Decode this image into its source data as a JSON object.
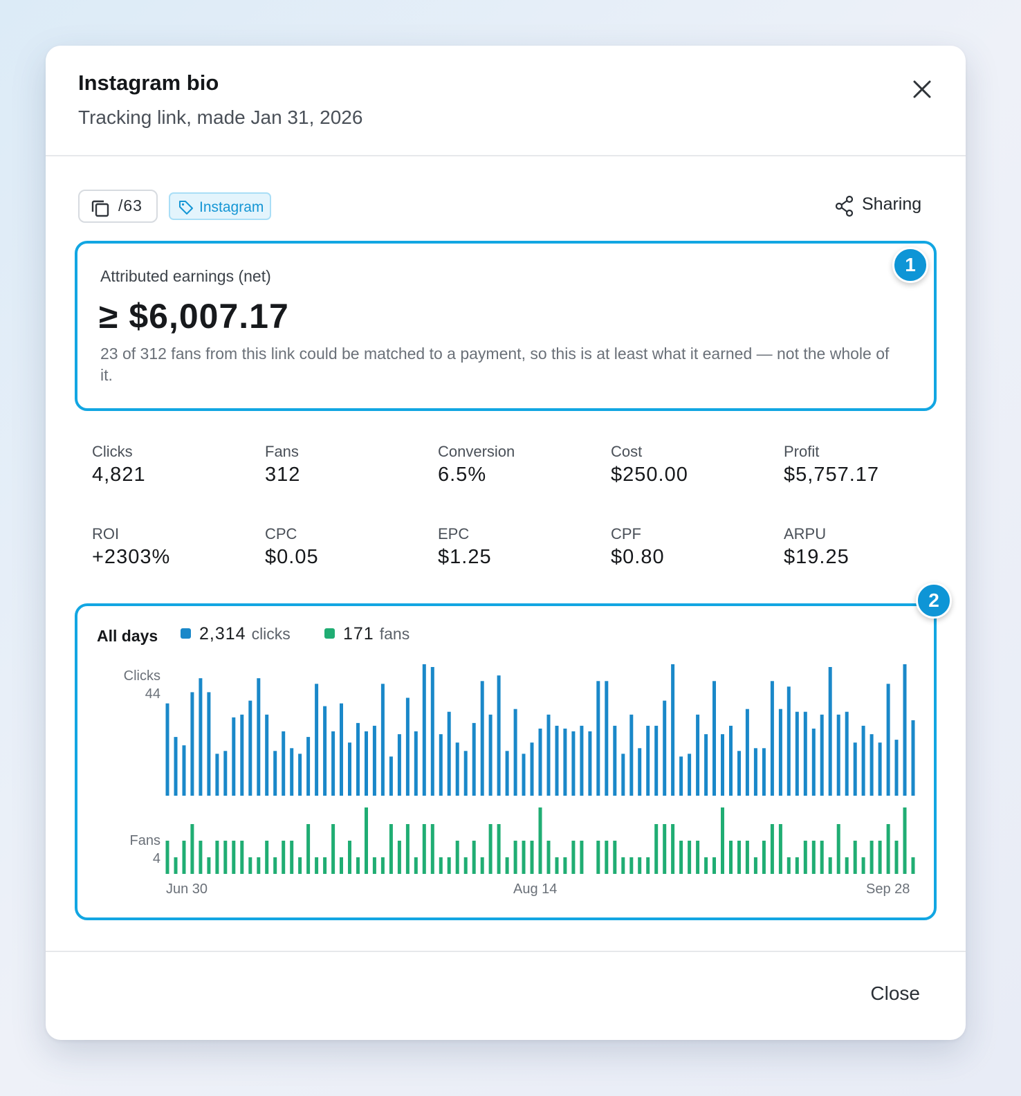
{
  "modal": {
    "title": "Instagram bio",
    "subtitle": "Tracking link, made Jan 31, 2026",
    "close_icon": "close-icon"
  },
  "toolbar": {
    "copy_text": "/63",
    "copy_icon": "copy-icon",
    "tag_label": "Instagram",
    "tag_icon": "tag-icon",
    "sharing_label": "Sharing",
    "sharing_icon": "share-icon"
  },
  "earnings": {
    "badge": "1",
    "label": "Attributed earnings (net)",
    "value": "≥ $6,007.17",
    "note": "23 of 312 fans from this link could be matched to a payment, so this is at least what it earned — not the whole of it."
  },
  "stats": [
    {
      "label": "Clicks",
      "value": "4,821"
    },
    {
      "label": "Fans",
      "value": "312"
    },
    {
      "label": "Conversion",
      "value": "6.5%"
    },
    {
      "label": "Cost",
      "value": "$250.00"
    },
    {
      "label": "Profit",
      "value": "$5,757.17"
    },
    {
      "label": "ROI",
      "value": "+2303%"
    },
    {
      "label": "CPC",
      "value": "$0.05"
    },
    {
      "label": "EPC",
      "value": "$1.25"
    },
    {
      "label": "CPF",
      "value": "$0.80"
    },
    {
      "label": "ARPU",
      "value": "$19.25"
    }
  ],
  "chart": {
    "badge": "2",
    "range_label": "All days",
    "legend_clicks_value": "2,314",
    "legend_clicks_unit": "clicks",
    "legend_fans_value": "171",
    "legend_fans_unit": "fans",
    "clicks_axis_label": "Clicks",
    "clicks_axis_max": "44",
    "fans_axis_label": "Fans",
    "fans_axis_max": "4",
    "date_start": "Jun 30",
    "date_mid": "Aug 14",
    "date_end": "Sep 28"
  },
  "chart_data": {
    "type": "bar",
    "x_start": "Jun 30",
    "x_mid": "Aug 14",
    "x_end": "Sep 28",
    "colors": {
      "clicks": "#1a88c9",
      "fans": "#20ad73"
    },
    "series": [
      {
        "name": "clicks",
        "max_label": 44,
        "values": [
          33,
          21,
          18,
          37,
          42,
          37,
          15,
          16,
          28,
          29,
          34,
          42,
          29,
          16,
          23,
          17,
          15,
          21,
          40,
          32,
          23,
          33,
          19,
          26,
          23,
          25,
          40,
          14,
          22,
          35,
          23,
          47,
          46,
          22,
          30,
          19,
          16,
          26,
          41,
          29,
          43,
          16,
          31,
          15,
          19,
          24,
          29,
          25,
          24,
          23,
          25,
          23,
          41,
          41,
          25,
          15,
          29,
          17,
          25,
          25,
          34,
          47,
          14,
          15,
          29,
          22,
          41,
          22,
          25,
          16,
          31,
          17,
          17,
          41,
          31,
          39,
          30,
          30,
          24,
          29,
          46,
          29,
          30,
          19,
          25,
          22,
          19,
          40,
          20,
          47,
          27
        ]
      },
      {
        "name": "fans",
        "max_label": 4,
        "values": [
          2,
          1,
          2,
          3,
          2,
          1,
          2,
          2,
          2,
          2,
          1,
          1,
          2,
          1,
          2,
          2,
          1,
          3,
          1,
          1,
          3,
          1,
          2,
          1,
          4,
          1,
          1,
          3,
          2,
          3,
          1,
          3,
          3,
          1,
          1,
          2,
          1,
          2,
          1,
          3,
          3,
          1,
          2,
          2,
          2,
          4,
          2,
          1,
          1,
          2,
          2,
          0,
          2,
          2,
          2,
          1,
          1,
          1,
          1,
          3,
          3,
          3,
          2,
          2,
          2,
          1,
          1,
          4,
          2,
          2,
          2,
          1,
          2,
          3,
          3,
          1,
          1,
          2,
          2,
          2,
          1,
          3,
          1,
          2,
          1,
          2,
          2,
          3,
          2,
          4,
          1
        ]
      }
    ]
  }
}
